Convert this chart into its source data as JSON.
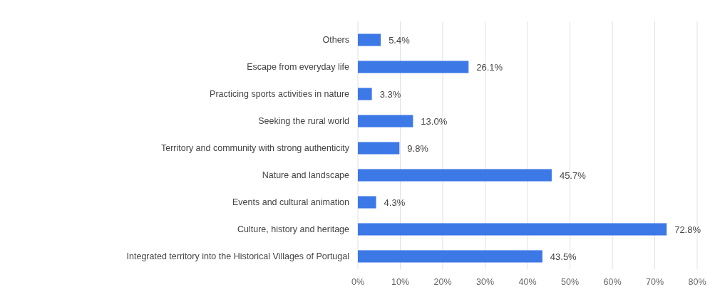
{
  "chart_data": {
    "type": "bar",
    "orientation": "horizontal",
    "categories": [
      "Others",
      "Escape from everyday life",
      "Practicing sports activities in nature",
      "Seeking the rural world",
      "Territory and community with strong authenticity",
      "Nature and landscape",
      "Events and cultural animation",
      "Culture, history and heritage",
      "Integrated territory into the Historical Villages of Portugal"
    ],
    "values": [
      5.4,
      26.1,
      3.3,
      13.0,
      9.8,
      45.7,
      4.3,
      72.8,
      43.5
    ],
    "value_labels": [
      "5.4%",
      "26.1%",
      "3.3%",
      "13.0%",
      "9.8%",
      "45.7%",
      "4.3%",
      "72.8%",
      "43.5%"
    ],
    "color": "#3c78e6",
    "xlim": [
      0,
      80
    ],
    "xticks": [
      {
        "value": 0,
        "label": "0%"
      },
      {
        "value": 10,
        "label": "10%"
      },
      {
        "value": 20,
        "label": "20%"
      },
      {
        "value": 30,
        "label": "30%"
      },
      {
        "value": 40,
        "label": "40%"
      },
      {
        "value": 50,
        "label": "50%"
      },
      {
        "value": 60,
        "label": "60%"
      },
      {
        "value": 70,
        "label": "70%"
      },
      {
        "value": 80,
        "label": "80%"
      }
    ],
    "grid": "x"
  }
}
